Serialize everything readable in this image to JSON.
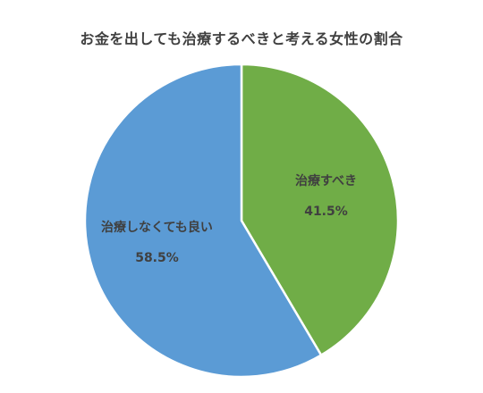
{
  "chart_data": {
    "type": "pie",
    "title": "お金を出しても治療するべきと考える女性の割合",
    "slices": [
      {
        "label": "治療すべき",
        "value": 41.5,
        "value_label": "41.5%",
        "color": "#70ad47"
      },
      {
        "label": "治療しなくても良い",
        "value": 58.5,
        "value_label": "58.5%",
        "color": "#5b9bd5"
      }
    ],
    "start": "top",
    "direction": "clockwise"
  }
}
